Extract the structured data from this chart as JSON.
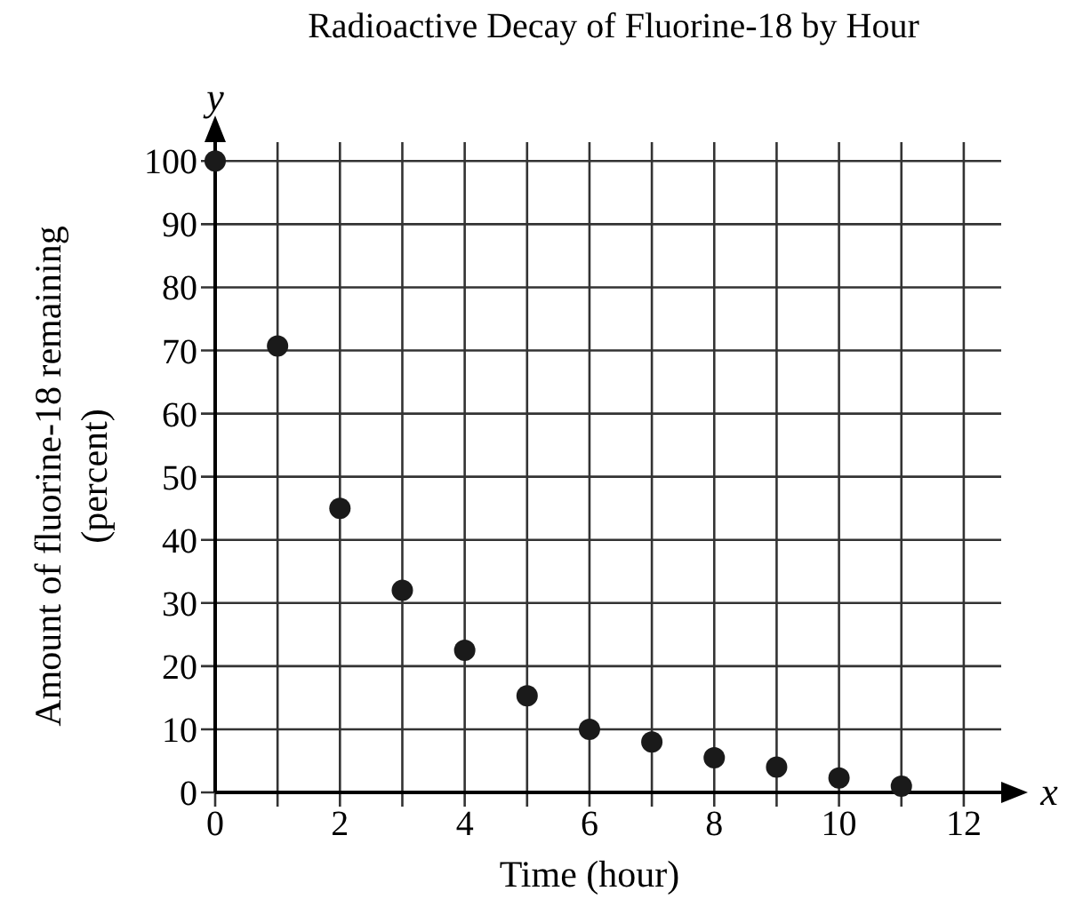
{
  "chart_data": {
    "type": "scatter",
    "title": "Radioactive Decay of Fluorine-18 by Hour",
    "xlabel": "Time (hour)",
    "ylabel": "Amount of fluorine-18 remaining\n(percent)",
    "annotations": [
      "x",
      "y"
    ],
    "x": [
      0,
      1,
      2,
      3,
      4,
      5,
      6,
      7,
      8,
      9,
      10,
      11
    ],
    "series": [
      {
        "color": "#1a1a1a",
        "values": [
          100,
          70.7,
          45,
          32,
          22.5,
          15.3,
          10,
          8,
          5.5,
          4,
          2.3,
          1
        ]
      }
    ],
    "xlim": [
      0,
      12.6
    ],
    "ylim": [
      0,
      103
    ],
    "xticks": [
      0,
      {
        "value": 1,
        "label": null
      },
      2,
      {
        "value": 3,
        "label": null
      },
      4,
      {
        "value": 5,
        "label": null
      },
      6,
      {
        "value": 7,
        "label": null
      },
      8,
      {
        "value": 9,
        "label": null
      },
      10,
      {
        "value": 11,
        "label": null
      },
      12
    ],
    "yticks": [
      0,
      10,
      20,
      30,
      40,
      50,
      60,
      70,
      80,
      90,
      100
    ],
    "grid": true,
    "marker": "circle"
  }
}
